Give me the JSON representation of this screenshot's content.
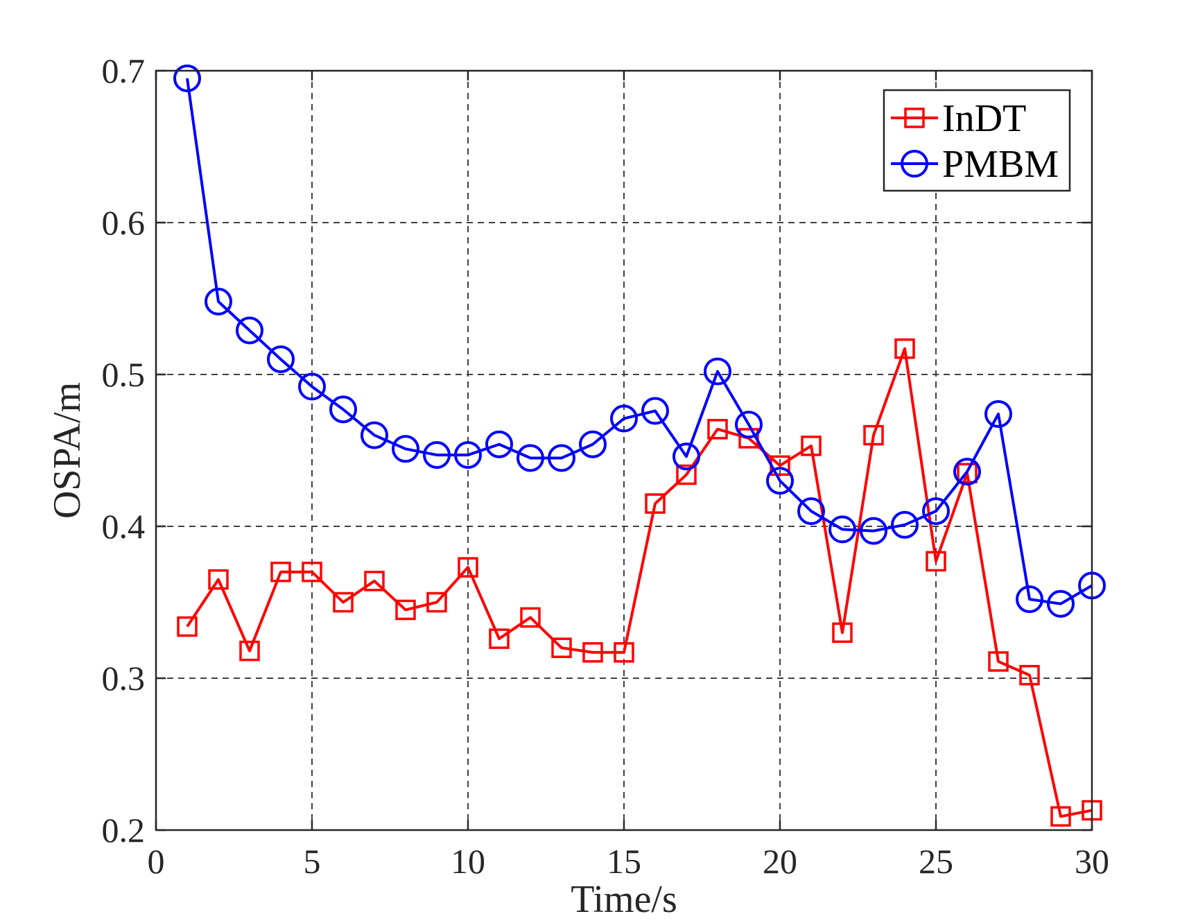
{
  "chart_data": {
    "type": "line",
    "title": "",
    "xlabel": "Time/s",
    "ylabel": "OSPA/m",
    "xlim": [
      0,
      30
    ],
    "ylim": [
      0.2,
      0.7
    ],
    "xticks": [
      0,
      5,
      10,
      15,
      20,
      25,
      30
    ],
    "yticks": [
      0.2,
      0.3,
      0.4,
      0.5,
      0.6,
      0.7
    ],
    "xtick_labels": [
      "0",
      "5",
      "10",
      "15",
      "20",
      "25",
      "30"
    ],
    "ytick_labels": [
      "0.2",
      "0.3",
      "0.4",
      "0.5",
      "0.6",
      "0.7"
    ],
    "grid": true,
    "legend_position": "top-right",
    "x": [
      1,
      2,
      3,
      4,
      5,
      6,
      7,
      8,
      9,
      10,
      11,
      12,
      13,
      14,
      15,
      16,
      17,
      18,
      19,
      20,
      21,
      22,
      23,
      24,
      25,
      26,
      27,
      28,
      29,
      30
    ],
    "series": [
      {
        "name": "InDT",
        "color": "#ff0000",
        "marker": "square",
        "values": [
          0.334,
          0.365,
          0.318,
          0.37,
          0.37,
          0.35,
          0.364,
          0.345,
          0.35,
          0.373,
          0.326,
          0.34,
          0.32,
          0.317,
          0.317,
          0.415,
          0.434,
          0.464,
          0.458,
          0.44,
          0.453,
          0.33,
          0.46,
          0.517,
          0.377,
          0.435,
          0.311,
          0.302,
          0.209,
          0.213
        ]
      },
      {
        "name": "PMBM",
        "color": "#0000ff",
        "marker": "circle",
        "values": [
          0.695,
          0.548,
          0.529,
          0.51,
          0.492,
          0.477,
          0.46,
          0.451,
          0.447,
          0.447,
          0.454,
          0.445,
          0.445,
          0.454,
          0.471,
          0.476,
          0.446,
          0.502,
          0.467,
          0.43,
          0.41,
          0.398,
          0.397,
          0.401,
          0.41,
          0.436,
          0.474,
          0.352,
          0.349,
          0.361
        ]
      }
    ]
  }
}
